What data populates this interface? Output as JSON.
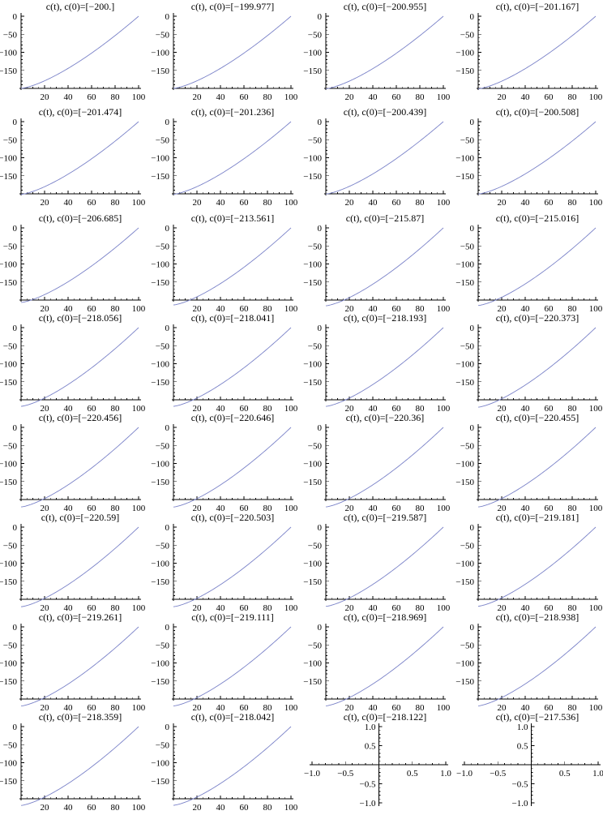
{
  "chart_data": {
    "type": "line",
    "grid": false,
    "layout": {
      "rows": 8,
      "columns": 4
    },
    "series_color": "#7a82c8",
    "shared_axes": {
      "xlim": [
        0,
        100
      ],
      "ylim": [
        -200,
        0
      ],
      "x_ticks": [
        "20",
        "40",
        "60",
        "80",
        "100"
      ],
      "y_ticks": [
        "0",
        "−50",
        "−100",
        "−150"
      ]
    },
    "empty_axes": {
      "xlim": [
        -1,
        1
      ],
      "ylim": [
        -1,
        1
      ],
      "x_ticks": [
        "−1.0",
        "−0.5",
        "0.5",
        "1.0"
      ],
      "y_ticks": [
        "1.0",
        "0.5",
        "−0.5",
        "−1.0"
      ]
    },
    "panels": [
      {
        "title": "c(t), c(0)=[−200.]",
        "c0": -200.0
      },
      {
        "title": "c(t), c(0)=[−199.977]",
        "c0": -199.977
      },
      {
        "title": "c(t), c(0)=[−200.955]",
        "c0": -200.955
      },
      {
        "title": "c(t), c(0)=[−201.167]",
        "c0": -201.167
      },
      {
        "title": "c(t), c(0)=[−201.474]",
        "c0": -201.474
      },
      {
        "title": "c(t), c(0)=[−201.236]",
        "c0": -201.236
      },
      {
        "title": "c(t), c(0)=[−200.439]",
        "c0": -200.439
      },
      {
        "title": "c(t), c(0)=[−200.508]",
        "c0": -200.508
      },
      {
        "title": "c(t), c(0)=[−206.685]",
        "c0": -206.685
      },
      {
        "title": "c(t), c(0)=[−213.561]",
        "c0": -213.561
      },
      {
        "title": "c(t), c(0)=[−215.87]",
        "c0": -215.87
      },
      {
        "title": "c(t), c(0)=[−215.016]",
        "c0": -215.016
      },
      {
        "title": "c(t), c(0)=[−218.056]",
        "c0": -218.056
      },
      {
        "title": "c(t), c(0)=[−218.041]",
        "c0": -218.041
      },
      {
        "title": "c(t), c(0)=[−218.193]",
        "c0": -218.193
      },
      {
        "title": "c(t), c(0)=[−220.373]",
        "c0": -220.373
      },
      {
        "title": "c(t), c(0)=[−220.456]",
        "c0": -220.456
      },
      {
        "title": "c(t), c(0)=[−220.646]",
        "c0": -220.646
      },
      {
        "title": "c(t), c(0)=[−220.36]",
        "c0": -220.36
      },
      {
        "title": "c(t), c(0)=[−220.455]",
        "c0": -220.455
      },
      {
        "title": "c(t), c(0)=[−220.59]",
        "c0": -220.59
      },
      {
        "title": "c(t), c(0)=[−220.503]",
        "c0": -220.503
      },
      {
        "title": "c(t), c(0)=[−219.587]",
        "c0": -219.587
      },
      {
        "title": "c(t), c(0)=[−219.181]",
        "c0": -219.181
      },
      {
        "title": "c(t), c(0)=[−219.261]",
        "c0": -219.261
      },
      {
        "title": "c(t), c(0)=[−219.111]",
        "c0": -219.111
      },
      {
        "title": "c(t), c(0)=[−218.969]",
        "c0": -218.969
      },
      {
        "title": "c(t), c(0)=[−218.938]",
        "c0": -218.938
      },
      {
        "title": "c(t), c(0)=[−218.359]",
        "c0": -218.359
      },
      {
        "title": "c(t), c(0)=[−218.042]",
        "c0": -218.042
      },
      {
        "title": "c(t), c(0)=[−218.122]",
        "c0": -218.122,
        "empty": true
      },
      {
        "title": "c(t), c(0)=[−217.536]",
        "c0": -217.536,
        "empty": true
      }
    ]
  }
}
